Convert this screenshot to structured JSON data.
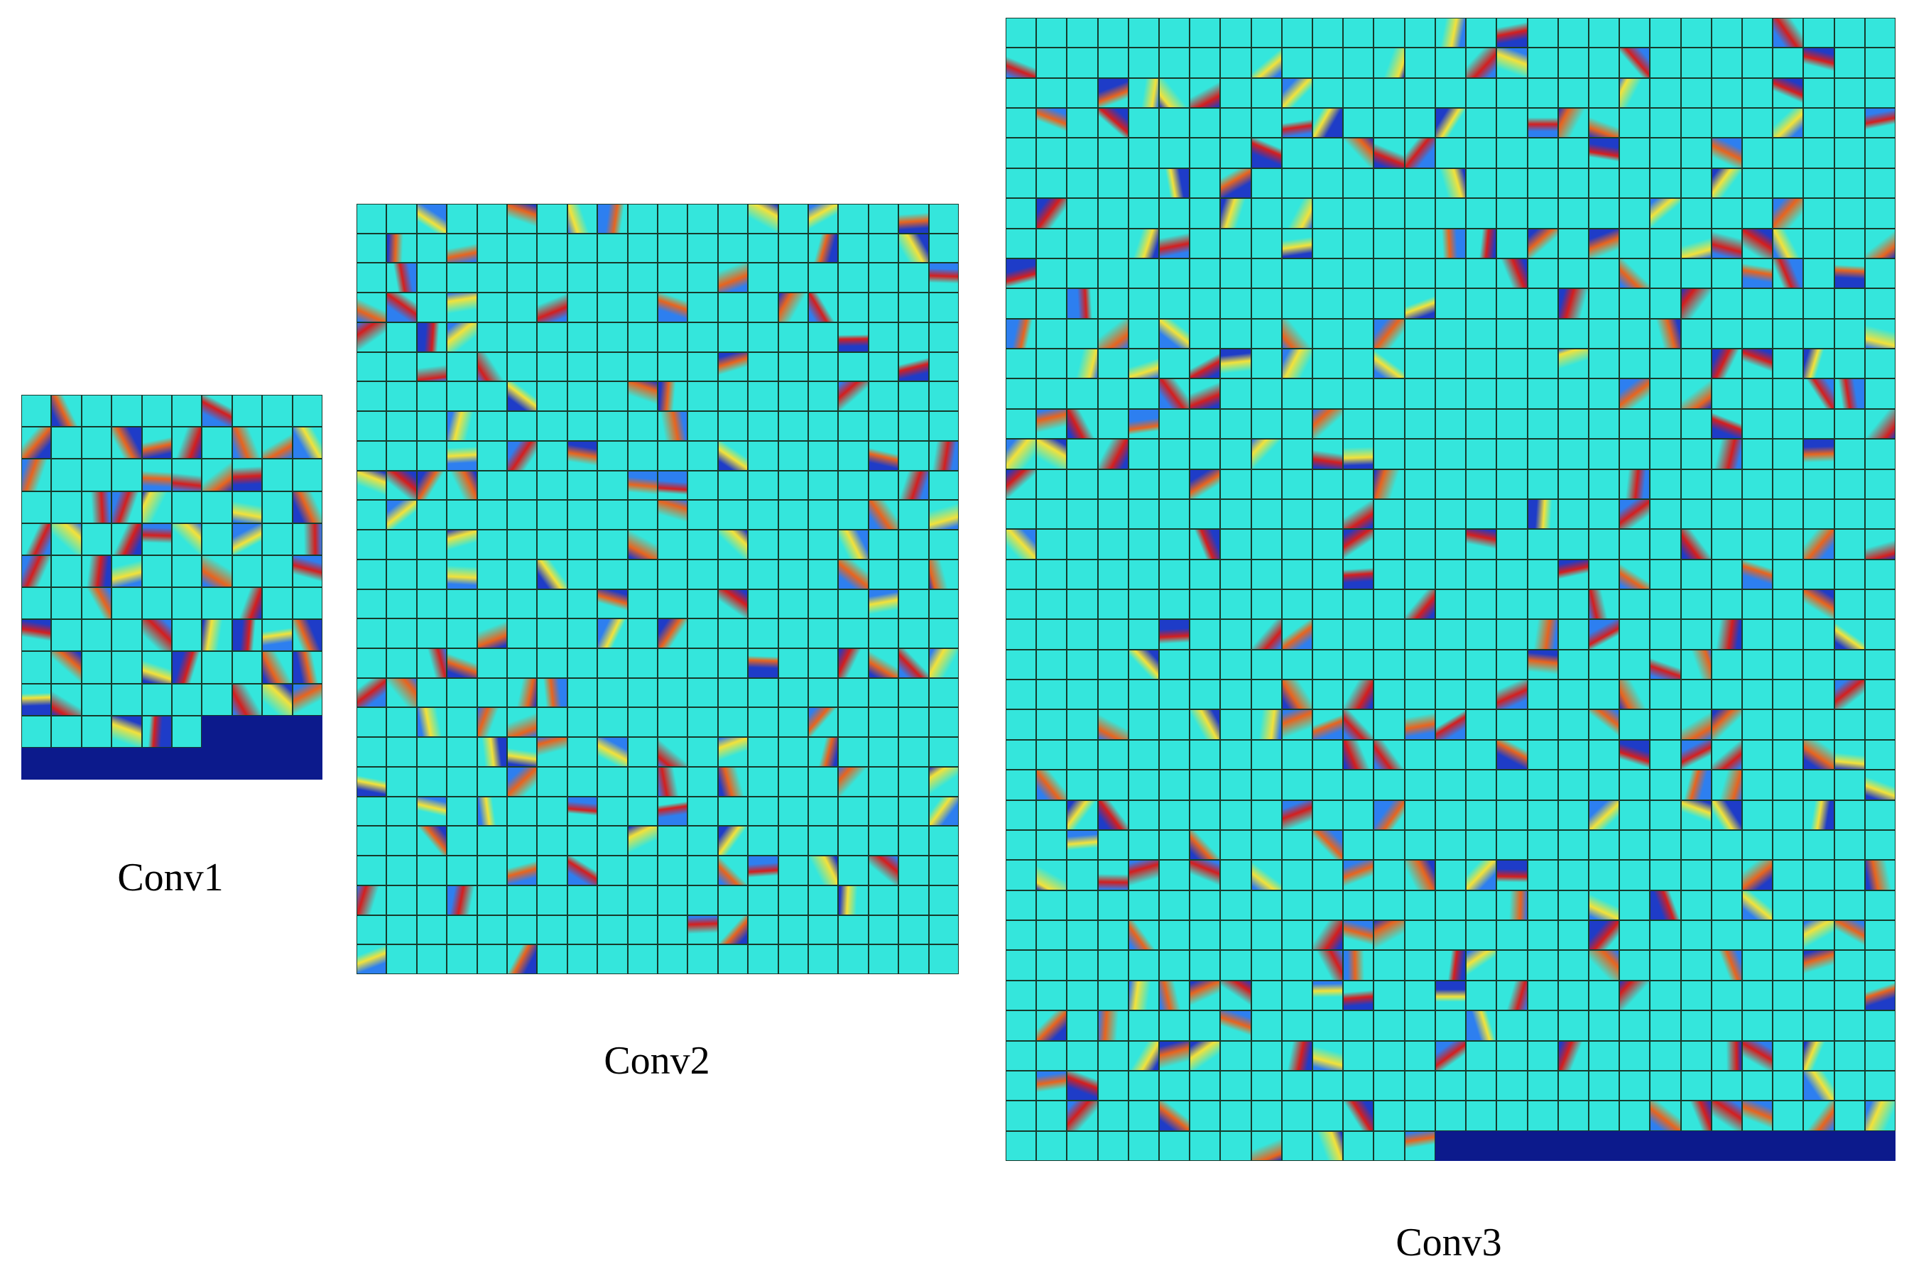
{
  "figure": {
    "panels": [
      {
        "id": "conv1",
        "caption": "Conv1",
        "columns": 10,
        "rows": 12,
        "filled_cells": 106
      },
      {
        "id": "conv2",
        "caption": "Conv2",
        "columns": 20,
        "rows": 26,
        "filled_cells": 520
      },
      {
        "id": "conv3",
        "caption": "Conv3",
        "columns": 29,
        "rows": 38,
        "filled_cells": 1087
      }
    ],
    "colors": {
      "background": "#ffffff",
      "grid_line": "#0a2a1e",
      "cell_base": "#34e6dc",
      "empty_area": "#0c1a8c",
      "accent_warm": [
        "#f2e23a",
        "#e8641e",
        "#d41e1e"
      ],
      "accent_cool": [
        "#2d7ff0",
        "#1e3cc8"
      ]
    }
  }
}
